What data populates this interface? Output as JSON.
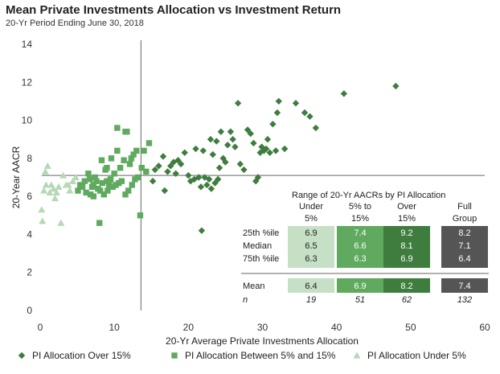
{
  "chart_data": {
    "type": "scatter",
    "title": "Mean Private Investments Allocation vs Investment Return",
    "subtitle": "20-Yr Period Ending June 30, 2018",
    "xlabel": "20-Yr  Average Private Investments Allocation",
    "ylabel": "20-Year AACR",
    "xlim": [
      0,
      60
    ],
    "ylim": [
      0,
      14
    ],
    "xticks": [
      "0",
      "10",
      "20",
      "30",
      "40",
      "50",
      "60"
    ],
    "yticks": [
      "0",
      "2",
      "4",
      "6",
      "8",
      "10",
      "12",
      "14"
    ],
    "grid": false,
    "reference_lines": {
      "x": 13.6,
      "y": 7.1
    },
    "legend_position": "bottom",
    "series": [
      {
        "name": "PI Allocation Over 15%",
        "marker": "diamond",
        "color": "#3f7d3f",
        "points": [
          [
            15.2,
            6.8
          ],
          [
            15.5,
            7.4
          ],
          [
            16.0,
            7.6
          ],
          [
            16.6,
            8.1
          ],
          [
            16.8,
            6.3
          ],
          [
            17.2,
            7.3
          ],
          [
            17.6,
            7.6
          ],
          [
            18.0,
            7.8
          ],
          [
            18.3,
            7.2
          ],
          [
            18.6,
            7.9
          ],
          [
            19.0,
            7.7
          ],
          [
            19.5,
            8.3
          ],
          [
            20.0,
            7.1
          ],
          [
            20.3,
            6.8
          ],
          [
            20.8,
            6.9
          ],
          [
            21.0,
            8.5
          ],
          [
            21.4,
            7.0
          ],
          [
            21.7,
            6.5
          ],
          [
            21.8,
            4.2
          ],
          [
            22.0,
            8.4
          ],
          [
            22.2,
            7.0
          ],
          [
            22.5,
            6.6
          ],
          [
            22.8,
            6.9
          ],
          [
            23.0,
            9.0
          ],
          [
            23.1,
            6.4
          ],
          [
            23.3,
            8.2
          ],
          [
            23.6,
            6.7
          ],
          [
            23.8,
            8.9
          ],
          [
            24.0,
            6.9
          ],
          [
            24.2,
            7.5
          ],
          [
            24.4,
            9.4
          ],
          [
            24.7,
            8.0
          ],
          [
            25.0,
            7.8
          ],
          [
            25.3,
            8.7
          ],
          [
            25.7,
            9.4
          ],
          [
            26.0,
            9.0
          ],
          [
            26.3,
            8.6
          ],
          [
            26.7,
            10.9
          ],
          [
            27.0,
            7.7
          ],
          [
            27.5,
            7.4
          ],
          [
            28.0,
            9.5
          ],
          [
            28.4,
            9.3
          ],
          [
            28.8,
            8.8
          ],
          [
            29.1,
            6.8
          ],
          [
            29.4,
            7.0
          ],
          [
            29.7,
            8.3
          ],
          [
            29.9,
            8.6
          ],
          [
            30.2,
            8.4
          ],
          [
            30.5,
            8.5
          ],
          [
            30.7,
            9.0
          ],
          [
            31.0,
            8.3
          ],
          [
            31.4,
            9.8
          ],
          [
            31.8,
            8.4
          ],
          [
            32.0,
            10.4
          ],
          [
            32.2,
            11.0
          ],
          [
            33.0,
            8.5
          ],
          [
            34.5,
            10.9
          ],
          [
            35.7,
            10.4
          ],
          [
            36.4,
            10.2
          ],
          [
            37.2,
            9.6
          ],
          [
            41.0,
            11.4
          ],
          [
            48.0,
            11.8
          ]
        ]
      },
      {
        "name": "PI Allocation Between 5% and 15%",
        "marker": "square",
        "color": "#5faa5f",
        "points": [
          [
            5.1,
            6.3
          ],
          [
            5.4,
            6.6
          ],
          [
            5.7,
            6.5
          ],
          [
            6.0,
            6.8
          ],
          [
            6.2,
            6.2
          ],
          [
            6.5,
            7.2
          ],
          [
            6.7,
            6.9
          ],
          [
            6.8,
            6.1
          ],
          [
            7.0,
            6.5
          ],
          [
            7.2,
            6.6
          ],
          [
            7.4,
            7.0
          ],
          [
            7.6,
            6.8
          ],
          [
            7.8,
            6.4
          ],
          [
            8.0,
            4.6
          ],
          [
            8.1,
            6.3
          ],
          [
            8.3,
            7.9
          ],
          [
            8.4,
            6.7
          ],
          [
            8.6,
            6.1
          ],
          [
            8.8,
            7.4
          ],
          [
            9.0,
            6.8
          ],
          [
            9.1,
            6.3
          ],
          [
            9.3,
            6.6
          ],
          [
            9.5,
            6.9
          ],
          [
            9.6,
            8.0
          ],
          [
            9.8,
            6.5
          ],
          [
            10.0,
            7.2
          ],
          [
            10.2,
            6.6
          ],
          [
            10.4,
            8.4
          ],
          [
            10.6,
            6.7
          ],
          [
            10.8,
            7.5
          ],
          [
            11.0,
            6.8
          ],
          [
            11.3,
            7.9
          ],
          [
            11.5,
            6.1
          ],
          [
            11.7,
            9.4
          ],
          [
            11.9,
            6.3
          ],
          [
            12.1,
            7.7
          ],
          [
            12.4,
            6.6
          ],
          [
            12.6,
            8.2
          ],
          [
            12.8,
            6.9
          ],
          [
            13.0,
            8.4
          ],
          [
            13.2,
            7.0
          ],
          [
            13.5,
            5.0
          ],
          [
            13.7,
            7.5
          ],
          [
            14.0,
            8.4
          ],
          [
            14.3,
            7.3
          ],
          [
            14.7,
            8.8
          ],
          [
            10.4,
            9.6
          ],
          [
            11.5,
            9.4
          ],
          [
            12.3,
            8.0
          ],
          [
            9.0,
            7.5
          ],
          [
            7.2,
            6.0
          ]
        ]
      },
      {
        "name": "PI Allocation Under 5%",
        "marker": "triangle",
        "color": "#b6d8b6",
        "points": [
          [
            0.2,
            5.3
          ],
          [
            0.3,
            4.7
          ],
          [
            0.5,
            6.3
          ],
          [
            0.8,
            6.6
          ],
          [
            1.0,
            7.6
          ],
          [
            1.3,
            6.2
          ],
          [
            1.5,
            6.6
          ],
          [
            1.8,
            6.4
          ],
          [
            2.2,
            6.2
          ],
          [
            2.5,
            6.5
          ],
          [
            2.8,
            4.6
          ],
          [
            3.1,
            7.1
          ],
          [
            3.5,
            6.6
          ],
          [
            4.0,
            6.3
          ],
          [
            4.4,
            6.8
          ],
          [
            4.8,
            7.0
          ],
          [
            3.8,
            6.6
          ],
          [
            2.0,
            5.9
          ],
          [
            0.7,
            7.3
          ]
        ]
      }
    ],
    "summary_table": {
      "title": "Range of 20-Yr AACRs by PI Allocation",
      "columns": [
        {
          "line1": "Under",
          "line2": "5%"
        },
        {
          "line1": "5% to",
          "line2": "15%"
        },
        {
          "line1": "Over",
          "line2": "15%"
        },
        {
          "line1": "Full",
          "line2": "Group"
        }
      ],
      "column_colors": [
        "#c5e0c5",
        "#5faa5f",
        "#3f7d3f",
        "#555555"
      ],
      "rows": [
        {
          "label": "25th %ile",
          "values": [
            "6.9",
            "7.4",
            "9.2",
            "8.2"
          ]
        },
        {
          "label": "Median",
          "values": [
            "6.5",
            "6.6",
            "8.1",
            "7.1"
          ]
        },
        {
          "label": "75th %ile",
          "values": [
            "6.3",
            "6.3",
            "6.9",
            "6.4"
          ]
        }
      ],
      "mean_row": {
        "label": "Mean",
        "values": [
          "6.4",
          "6.9",
          "8.2",
          "7.4"
        ]
      },
      "n_row": {
        "label": "n",
        "values": [
          "19",
          "51",
          "62",
          "132"
        ]
      }
    }
  }
}
